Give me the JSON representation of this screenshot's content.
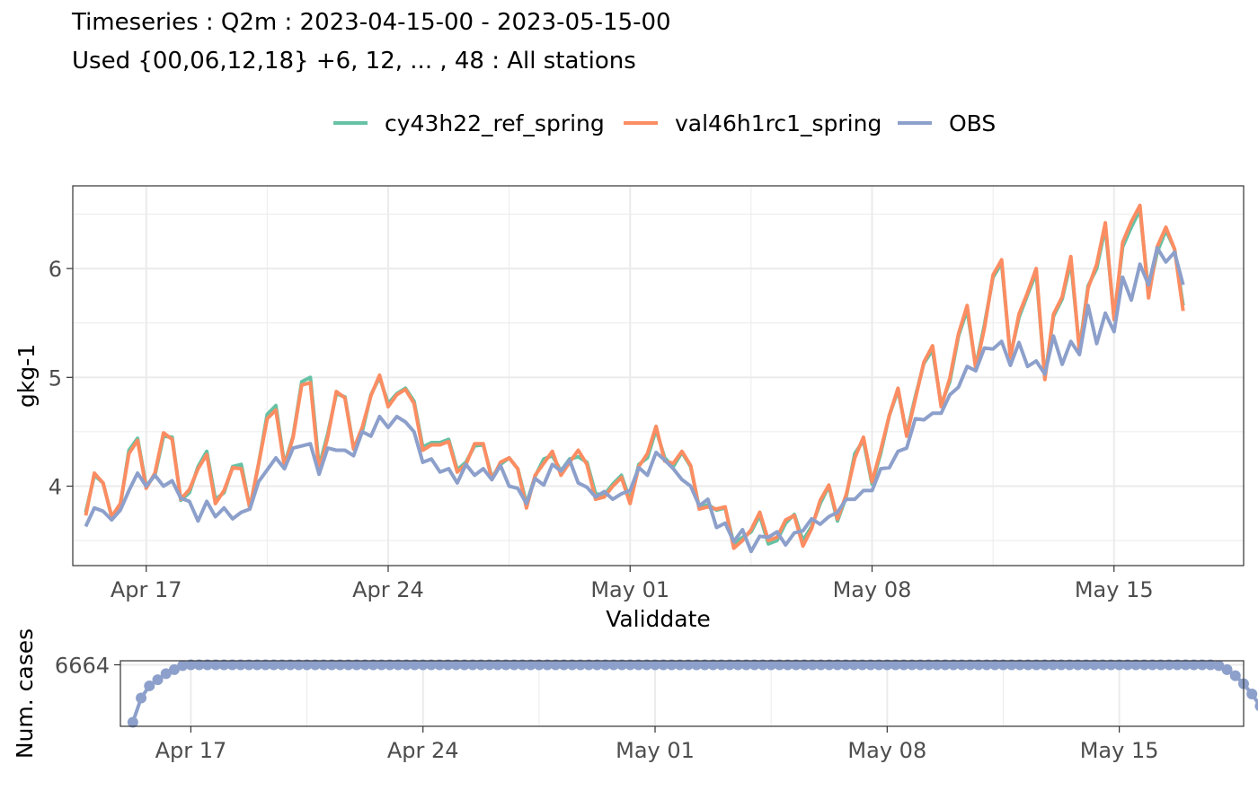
{
  "title": "Timeseries : Q2m : 2023-04-15-00 - 2023-05-15-00",
  "subtitle": "Used {00,06,12,18} +6, 12, ... , 48 : All stations",
  "colors": {
    "cy43h22_ref_spring": "#66c2a5",
    "val46h1rc1_spring": "#fc8d62",
    "OBS": "#8da0cb",
    "grid": "#ebebeb",
    "panel_border": "#333333",
    "tick_text": "#4d4d4d"
  },
  "chart_data": [
    {
      "type": "line",
      "xlabel": "Validdate",
      "ylabel": "gkg-1",
      "x_axis": {
        "start": "2023-04-15 06:00",
        "step_hours": 6,
        "ticks": [
          "Apr 17",
          "Apr 24",
          "May 01",
          "May 08",
          "May 15"
        ],
        "xlim": [
          "2023-04-14 21:00",
          "2023-05-18 18:00"
        ]
      },
      "yticks": [
        "4",
        "5",
        "6"
      ],
      "ylim": [
        3.27,
        6.76
      ],
      "grid": true,
      "legend_position": "top",
      "series": [
        {
          "name": "cy43h22_ref_spring",
          "values": [
            3.76,
            4.1,
            4.03,
            3.72,
            3.82,
            4.33,
            4.44,
            4.0,
            4.1,
            4.46,
            4.45,
            3.87,
            3.94,
            4.18,
            4.32,
            3.88,
            3.94,
            4.18,
            4.2,
            3.8,
            4.2,
            4.66,
            4.74,
            4.2,
            4.46,
            4.96,
            5.0,
            4.18,
            4.48,
            4.85,
            4.82,
            4.35,
            4.5,
            4.84,
            5.0,
            4.76,
            4.85,
            4.9,
            4.78,
            4.36,
            4.4,
            4.4,
            4.43,
            4.15,
            4.22,
            4.37,
            4.38,
            4.08,
            4.2,
            4.26,
            4.16,
            3.84,
            4.09,
            4.25,
            4.28,
            4.14,
            4.25,
            4.27,
            4.22,
            3.93,
            3.92,
            4.02,
            4.1,
            3.87,
            4.2,
            4.26,
            4.52,
            4.26,
            4.18,
            4.31,
            4.18,
            3.8,
            3.83,
            3.78,
            3.8,
            3.47,
            3.53,
            3.58,
            3.73,
            3.47,
            3.5,
            3.66,
            3.74,
            3.5,
            3.63,
            3.84,
            4.0,
            3.68,
            3.9,
            4.3,
            4.42,
            4.02,
            4.3,
            4.65,
            4.88,
            4.48,
            4.82,
            5.13,
            5.25,
            4.75,
            4.96,
            5.38,
            5.62,
            5.1,
            5.48,
            5.92,
            6.05,
            5.2,
            5.55,
            5.76,
            5.96,
            5.0,
            5.56,
            5.72,
            6.06,
            5.26,
            5.84,
            6.0,
            6.38,
            5.55,
            6.2,
            6.38,
            6.54,
            5.78,
            6.15,
            6.35,
            6.18,
            5.66
          ]
        },
        {
          "name": "val46h1rc1_spring",
          "values": [
            3.73,
            4.12,
            4.03,
            3.72,
            3.84,
            4.3,
            4.42,
            3.98,
            4.12,
            4.49,
            4.43,
            3.88,
            3.97,
            4.16,
            4.29,
            3.84,
            3.96,
            4.17,
            4.16,
            3.8,
            4.2,
            4.62,
            4.7,
            4.18,
            4.45,
            4.93,
            4.95,
            4.14,
            4.45,
            4.87,
            4.81,
            4.34,
            4.54,
            4.83,
            5.02,
            4.73,
            4.84,
            4.89,
            4.76,
            4.33,
            4.38,
            4.38,
            4.41,
            4.13,
            4.2,
            4.39,
            4.39,
            4.06,
            4.22,
            4.26,
            4.16,
            3.8,
            4.1,
            4.21,
            4.32,
            4.1,
            4.22,
            4.33,
            4.2,
            3.88,
            3.9,
            4.0,
            4.08,
            3.84,
            4.18,
            4.3,
            4.55,
            4.23,
            4.21,
            4.32,
            4.19,
            3.79,
            3.81,
            3.79,
            3.81,
            3.43,
            3.5,
            3.6,
            3.76,
            3.5,
            3.53,
            3.69,
            3.73,
            3.45,
            3.61,
            3.87,
            4.01,
            3.7,
            3.92,
            4.26,
            4.45,
            4.04,
            4.33,
            4.65,
            4.9,
            4.46,
            4.8,
            5.14,
            5.29,
            4.73,
            4.99,
            5.4,
            5.66,
            5.08,
            5.45,
            5.94,
            6.08,
            5.18,
            5.58,
            5.78,
            6.0,
            4.98,
            5.58,
            5.74,
            6.11,
            5.24,
            5.82,
            6.04,
            6.42,
            5.53,
            6.24,
            6.43,
            6.58,
            5.73,
            6.2,
            6.38,
            6.18,
            5.61
          ]
        },
        {
          "name": "OBS",
          "values": [
            3.63,
            3.8,
            3.77,
            3.69,
            3.78,
            3.96,
            4.12,
            4.0,
            4.1,
            4.0,
            4.05,
            3.89,
            3.86,
            3.68,
            3.86,
            3.72,
            3.8,
            3.7,
            3.76,
            3.79,
            4.04,
            4.15,
            4.26,
            4.16,
            4.35,
            4.37,
            4.39,
            4.11,
            4.35,
            4.33,
            4.33,
            4.28,
            4.5,
            4.46,
            4.64,
            4.54,
            4.64,
            4.59,
            4.5,
            4.22,
            4.25,
            4.13,
            4.16,
            4.03,
            4.2,
            4.1,
            4.16,
            4.06,
            4.19,
            4.0,
            3.98,
            3.84,
            4.07,
            4.01,
            4.2,
            4.14,
            4.24,
            4.03,
            3.99,
            3.9,
            3.95,
            3.88,
            3.93,
            3.96,
            4.17,
            4.1,
            4.31,
            4.24,
            4.16,
            4.06,
            4.0,
            3.82,
            3.88,
            3.62,
            3.66,
            3.49,
            3.6,
            3.4,
            3.54,
            3.53,
            3.58,
            3.46,
            3.57,
            3.59,
            3.7,
            3.65,
            3.72,
            3.76,
            3.88,
            3.88,
            3.96,
            3.96,
            4.16,
            4.17,
            4.32,
            4.35,
            4.62,
            4.61,
            4.67,
            4.67,
            4.84,
            4.91,
            5.1,
            5.06,
            5.27,
            5.26,
            5.33,
            5.11,
            5.32,
            5.1,
            5.15,
            5.03,
            5.38,
            5.12,
            5.33,
            5.21,
            5.66,
            5.31,
            5.59,
            5.42,
            5.92,
            5.71,
            6.04,
            5.85,
            6.19,
            6.06,
            6.15,
            5.85
          ]
        }
      ]
    },
    {
      "type": "line",
      "ylabel": "Num. cases",
      "x_axis": {
        "start": "2023-04-15 06:00",
        "step_hours": 6,
        "ticks": [
          "Apr 17",
          "Apr 24",
          "May 01",
          "May 08",
          "May 15"
        ],
        "xlim": [
          "2023-04-14 21:00",
          "2023-05-18 18:00"
        ]
      },
      "yticks": [
        "6664"
      ],
      "ylim": [
        6360,
        6684
      ],
      "grid": true,
      "series": [
        {
          "name": "OBS",
          "values": [
            6380,
            6500,
            6560,
            6590,
            6620,
            6640,
            6660,
            6664,
            6664,
            6664,
            6664,
            6664,
            6664,
            6664,
            6664,
            6664,
            6664,
            6664,
            6664,
            6664,
            6664,
            6664,
            6664,
            6664,
            6664,
            6664,
            6664,
            6664,
            6664,
            6664,
            6664,
            6664,
            6664,
            6664,
            6664,
            6664,
            6664,
            6664,
            6664,
            6664,
            6664,
            6664,
            6664,
            6664,
            6664,
            6664,
            6664,
            6664,
            6664,
            6664,
            6664,
            6664,
            6664,
            6664,
            6664,
            6664,
            6664,
            6664,
            6664,
            6664,
            6664,
            6664,
            6664,
            6664,
            6664,
            6664,
            6664,
            6664,
            6664,
            6664,
            6664,
            6664,
            6664,
            6664,
            6664,
            6664,
            6664,
            6664,
            6664,
            6664,
            6664,
            6664,
            6664,
            6664,
            6664,
            6664,
            6664,
            6664,
            6664,
            6664,
            6664,
            6664,
            6664,
            6664,
            6664,
            6664,
            6664,
            6664,
            6664,
            6664,
            6664,
            6664,
            6664,
            6664,
            6664,
            6664,
            6664,
            6664,
            6664,
            6664,
            6664,
            6664,
            6664,
            6664,
            6664,
            6664,
            6664,
            6664,
            6664,
            6664,
            6664,
            6664,
            6664,
            6664,
            6664,
            6664,
            6664,
            6664,
            6664,
            6664,
            6664,
            6660,
            6640,
            6610,
            6570,
            6520,
            6460,
            6380
          ]
        }
      ]
    }
  ]
}
